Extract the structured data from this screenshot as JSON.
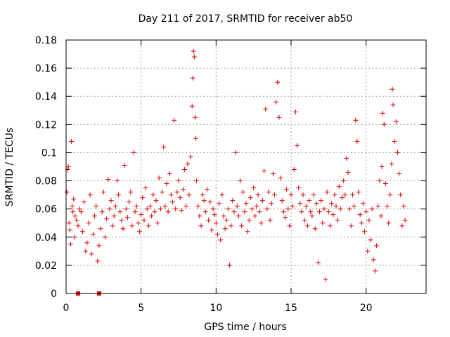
{
  "chart_data": {
    "type": "scatter",
    "title": "Day 211 of 2017, SRMTID for receiver ab50",
    "xlabel": "GPS time / hours",
    "ylabel": "SRMTID / TECUs",
    "xlim": [
      0,
      24
    ],
    "ylim": [
      0,
      0.18
    ],
    "x_ticks": [
      0,
      5,
      10,
      15,
      20
    ],
    "x_tick_labels": [
      "0",
      "5",
      "10",
      "15",
      "20"
    ],
    "y_ticks": [
      0,
      0.02,
      0.04,
      0.06,
      0.08,
      0.1,
      0.12,
      0.14,
      0.16,
      0.18
    ],
    "y_tick_labels": [
      "0",
      "0.02",
      "0.04",
      "0.06",
      "0.08",
      "0.1",
      "0.12",
      "0.14",
      "0.16",
      "0.18"
    ],
    "grid": true,
    "marker": "+",
    "color": "#e00000",
    "series": [
      {
        "name": "SRMTID",
        "points": [
          [
            0.05,
            0.072
          ],
          [
            0.1,
            0.088
          ],
          [
            0.15,
            0.09
          ],
          [
            0.2,
            0.05
          ],
          [
            0.25,
            0.045
          ],
          [
            0.3,
            0.035
          ],
          [
            0.35,
            0.108
          ],
          [
            0.4,
            0.062
          ],
          [
            0.45,
            0.058
          ],
          [
            0.5,
            0.067
          ],
          [
            0.55,
            0.04
          ],
          [
            0.6,
            0.055
          ],
          [
            0.7,
            0.052
          ],
          [
            0.8,
            0.048
          ],
          [
            0.9,
            0.06
          ],
          [
            1.0,
            0.058
          ],
          [
            1.1,
            0.044
          ],
          [
            1.2,
            0.065
          ],
          [
            1.3,
            0.03
          ],
          [
            1.4,
            0.036
          ],
          [
            1.5,
            0.05
          ],
          [
            1.6,
            0.07
          ],
          [
            1.7,
            0.028
          ],
          [
            1.8,
            0.042
          ],
          [
            1.9,
            0.055
          ],
          [
            2.0,
            0.062
          ],
          [
            2.1,
            0.023
          ],
          [
            2.2,
            0.034
          ],
          [
            2.3,
            0.046
          ],
          [
            2.4,
            0.058
          ],
          [
            2.5,
            0.072
          ],
          [
            2.6,
            0.04
          ],
          [
            2.7,
            0.053
          ],
          [
            2.8,
            0.081
          ],
          [
            2.9,
            0.06
          ],
          [
            3.0,
            0.066
          ],
          [
            3.1,
            0.048
          ],
          [
            3.2,
            0.055
          ],
          [
            3.3,
            0.062
          ],
          [
            3.4,
            0.08
          ],
          [
            3.5,
            0.07
          ],
          [
            3.6,
            0.058
          ],
          [
            3.7,
            0.052
          ],
          [
            3.8,
            0.046
          ],
          [
            3.9,
            0.091
          ],
          [
            4.0,
            0.06
          ],
          [
            4.1,
            0.054
          ],
          [
            4.2,
            0.065
          ],
          [
            4.3,
            0.072
          ],
          [
            4.4,
            0.048
          ],
          [
            4.5,
            0.1
          ],
          [
            4.6,
            0.058
          ],
          [
            4.7,
            0.062
          ],
          [
            4.8,
            0.05
          ],
          [
            4.9,
            0.044
          ],
          [
            5.0,
            0.056
          ],
          [
            5.1,
            0.068
          ],
          [
            5.2,
            0.052
          ],
          [
            5.3,
            0.075
          ],
          [
            5.4,
            0.06
          ],
          [
            5.5,
            0.048
          ],
          [
            5.6,
            0.062
          ],
          [
            5.7,
            0.055
          ],
          [
            5.8,
            0.07
          ],
          [
            5.9,
            0.058
          ],
          [
            6.0,
            0.066
          ],
          [
            6.1,
            0.05
          ],
          [
            6.2,
            0.082
          ],
          [
            6.3,
            0.06
          ],
          [
            6.4,
            0.072
          ],
          [
            6.5,
            0.104
          ],
          [
            6.6,
            0.062
          ],
          [
            6.7,
            0.078
          ],
          [
            6.8,
            0.058
          ],
          [
            6.9,
            0.085
          ],
          [
            7.0,
            0.07
          ],
          [
            7.1,
            0.065
          ],
          [
            7.2,
            0.123
          ],
          [
            7.3,
            0.06
          ],
          [
            7.4,
            0.072
          ],
          [
            7.5,
            0.08
          ],
          [
            7.6,
            0.068
          ],
          [
            7.7,
            0.059
          ],
          [
            7.8,
            0.074
          ],
          [
            7.9,
            0.088
          ],
          [
            8.0,
            0.062
          ],
          [
            8.1,
            0.092
          ],
          [
            8.2,
            0.07
          ],
          [
            8.3,
            0.097
          ],
          [
            8.4,
            0.133
          ],
          [
            8.45,
            0.153
          ],
          [
            8.5,
            0.172
          ],
          [
            8.55,
            0.168
          ],
          [
            8.6,
            0.125
          ],
          [
            8.65,
            0.11
          ],
          [
            8.7,
            0.08
          ],
          [
            8.8,
            0.062
          ],
          [
            8.9,
            0.055
          ],
          [
            9.0,
            0.048
          ],
          [
            9.1,
            0.07
          ],
          [
            9.2,
            0.066
          ],
          [
            9.3,
            0.058
          ],
          [
            9.4,
            0.074
          ],
          [
            9.5,
            0.052
          ],
          [
            9.6,
            0.065
          ],
          [
            9.7,
            0.045
          ],
          [
            9.8,
            0.06
          ],
          [
            9.9,
            0.056
          ],
          [
            10.0,
            0.05
          ],
          [
            10.1,
            0.042
          ],
          [
            10.2,
            0.064
          ],
          [
            10.3,
            0.038
          ],
          [
            10.4,
            0.07
          ],
          [
            10.5,
            0.055
          ],
          [
            10.6,
            0.046
          ],
          [
            10.7,
            0.052
          ],
          [
            10.8,
            0.06
          ],
          [
            10.9,
            0.02
          ],
          [
            11.0,
            0.048
          ],
          [
            11.1,
            0.066
          ],
          [
            11.2,
            0.058
          ],
          [
            11.3,
            0.1
          ],
          [
            11.4,
            0.062
          ],
          [
            11.5,
            0.055
          ],
          [
            11.6,
            0.08
          ],
          [
            11.7,
            0.048
          ],
          [
            11.8,
            0.072
          ],
          [
            11.9,
            0.058
          ],
          [
            12.0,
            0.064
          ],
          [
            12.1,
            0.044
          ],
          [
            12.2,
            0.052
          ],
          [
            12.3,
            0.068
          ],
          [
            12.4,
            0.06
          ],
          [
            12.5,
            0.075
          ],
          [
            12.6,
            0.055
          ],
          [
            12.7,
            0.062
          ],
          [
            12.8,
            0.07
          ],
          [
            12.9,
            0.058
          ],
          [
            13.0,
            0.05
          ],
          [
            13.1,
            0.066
          ],
          [
            13.2,
            0.087
          ],
          [
            13.3,
            0.131
          ],
          [
            13.4,
            0.06
          ],
          [
            13.5,
            0.072
          ],
          [
            13.6,
            0.052
          ],
          [
            13.7,
            0.064
          ],
          [
            13.8,
            0.085
          ],
          [
            13.9,
            0.07
          ],
          [
            14.0,
            0.136
          ],
          [
            14.1,
            0.15
          ],
          [
            14.2,
            0.125
          ],
          [
            14.3,
            0.082
          ],
          [
            14.4,
            0.066
          ],
          [
            14.5,
            0.058
          ],
          [
            14.6,
            0.054
          ],
          [
            14.7,
            0.074
          ],
          [
            14.8,
            0.06
          ],
          [
            14.9,
            0.048
          ],
          [
            15.0,
            0.07
          ],
          [
            15.1,
            0.062
          ],
          [
            15.2,
            0.088
          ],
          [
            15.3,
            0.129
          ],
          [
            15.4,
            0.105
          ],
          [
            15.5,
            0.075
          ],
          [
            15.6,
            0.064
          ],
          [
            15.7,
            0.058
          ],
          [
            15.8,
            0.07
          ],
          [
            15.9,
            0.052
          ],
          [
            16.0,
            0.062
          ],
          [
            16.1,
            0.048
          ],
          [
            16.2,
            0.066
          ],
          [
            16.3,
            0.058
          ],
          [
            16.4,
            0.055
          ],
          [
            16.5,
            0.07
          ],
          [
            16.6,
            0.046
          ],
          [
            16.7,
            0.064
          ],
          [
            16.8,
            0.022
          ],
          [
            16.9,
            0.058
          ],
          [
            17.0,
            0.066
          ],
          [
            17.1,
            0.05
          ],
          [
            17.2,
            0.06
          ],
          [
            17.3,
            0.01
          ],
          [
            17.4,
            0.072
          ],
          [
            17.5,
            0.058
          ],
          [
            17.6,
            0.048
          ],
          [
            17.7,
            0.064
          ],
          [
            17.8,
            0.056
          ],
          [
            17.9,
            0.07
          ],
          [
            18.0,
            0.062
          ],
          [
            18.1,
            0.052
          ],
          [
            18.2,
            0.076
          ],
          [
            18.3,
            0.06
          ],
          [
            18.4,
            0.068
          ],
          [
            18.5,
            0.08
          ],
          [
            18.6,
            0.07
          ],
          [
            18.7,
            0.096
          ],
          [
            18.8,
            0.086
          ],
          [
            18.9,
            0.06
          ],
          [
            19.0,
            0.048
          ],
          [
            19.1,
            0.07
          ],
          [
            19.2,
            0.062
          ],
          [
            19.3,
            0.123
          ],
          [
            19.4,
            0.108
          ],
          [
            19.5,
            0.072
          ],
          [
            19.6,
            0.056
          ],
          [
            19.7,
            0.05
          ],
          [
            19.8,
            0.064
          ],
          [
            19.9,
            0.044
          ],
          [
            20.0,
            0.058
          ],
          [
            20.1,
            0.03
          ],
          [
            20.2,
            0.052
          ],
          [
            20.3,
            0.038
          ],
          [
            20.4,
            0.06
          ],
          [
            20.5,
            0.024
          ],
          [
            20.6,
            0.016
          ],
          [
            20.7,
            0.034
          ],
          [
            20.8,
            0.062
          ],
          [
            20.9,
            0.08
          ],
          [
            21.0,
            0.055
          ],
          [
            21.05,
            0.09
          ],
          [
            21.1,
            0.128
          ],
          [
            21.2,
            0.12
          ],
          [
            21.3,
            0.078
          ],
          [
            21.4,
            0.062
          ],
          [
            21.5,
            0.05
          ],
          [
            21.6,
            0.07
          ],
          [
            21.7,
            0.092
          ],
          [
            21.75,
            0.145
          ],
          [
            21.8,
            0.134
          ],
          [
            21.9,
            0.108
          ],
          [
            22.0,
            0.122
          ],
          [
            22.1,
            0.1
          ],
          [
            22.2,
            0.085
          ],
          [
            22.3,
            0.07
          ],
          [
            22.4,
            0.048
          ],
          [
            22.5,
            0.062
          ],
          [
            22.6,
            0.052
          ]
        ]
      }
    ],
    "highlight_points": [
      [
        0.8,
        0.0
      ],
      [
        2.2,
        0.0
      ]
    ]
  }
}
